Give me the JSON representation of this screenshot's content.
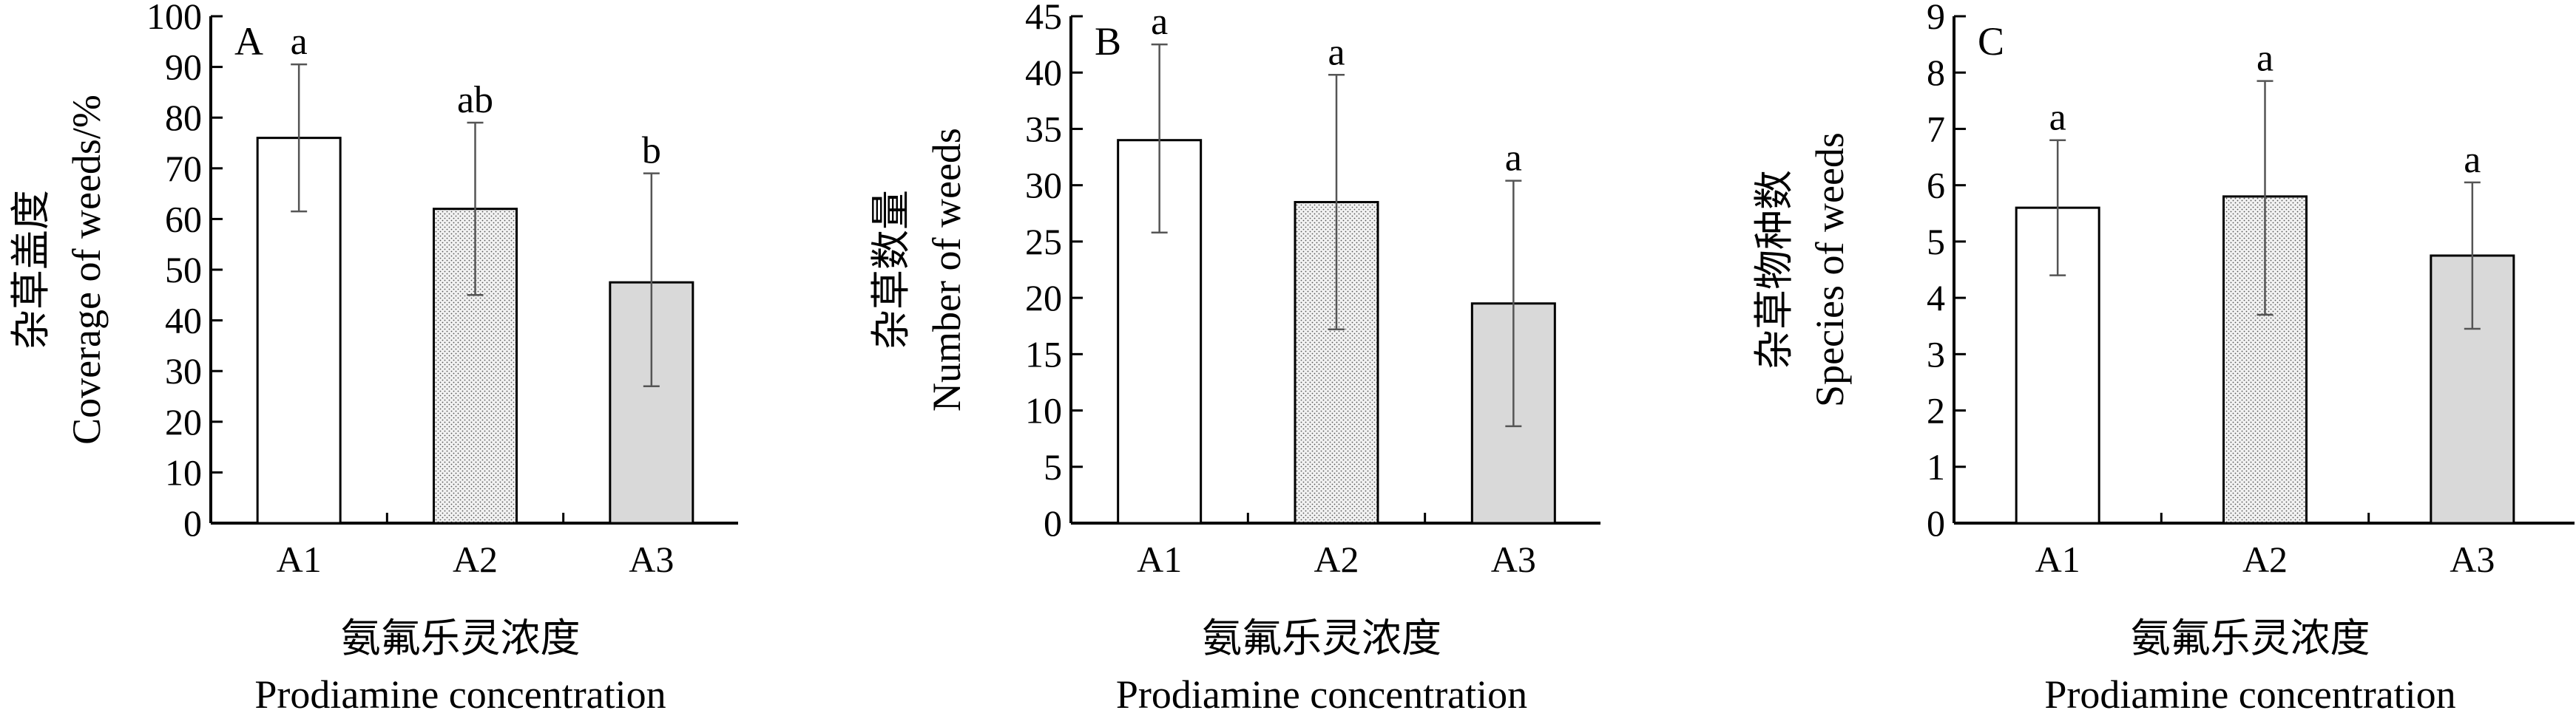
{
  "chart_data": [
    {
      "type": "bar",
      "panel_label": "A",
      "categories": [
        "A1",
        "A2",
        "A3"
      ],
      "values": [
        76,
        62,
        47.5
      ],
      "errors_upper": [
        90.5,
        79,
        69
      ],
      "errors_lower": [
        61.5,
        45,
        27
      ],
      "significance": [
        "a",
        "ab",
        "b"
      ],
      "ylabel_cn": "杂草盖度",
      "ylabel_en": "Coverage of weeds/%",
      "xlabel_cn": "氨氟乐灵浓度",
      "xlabel_en": "Prodiamine concentration",
      "ylim": [
        0,
        100
      ],
      "yticks": [
        "0",
        "10",
        "20",
        "30",
        "40",
        "50",
        "60",
        "70",
        "80",
        "90",
        "100"
      ]
    },
    {
      "type": "bar",
      "panel_label": "B",
      "categories": [
        "A1",
        "A2",
        "A3"
      ],
      "values": [
        34,
        28.5,
        19.5
      ],
      "errors_upper": [
        42.5,
        39.8,
        30.4
      ],
      "errors_lower": [
        25.8,
        17.2,
        8.6
      ],
      "significance": [
        "a",
        "a",
        "a"
      ],
      "ylabel_cn": "杂草数量",
      "ylabel_en": "Number of weeds",
      "xlabel_cn": "氨氟乐灵浓度",
      "xlabel_en": "Prodiamine concentration",
      "ylim": [
        0,
        45
      ],
      "yticks": [
        "0",
        "5",
        "10",
        "15",
        "20",
        "25",
        "30",
        "35",
        "40",
        "45"
      ]
    },
    {
      "type": "bar",
      "panel_label": "C",
      "categories": [
        "A1",
        "A2",
        "A3"
      ],
      "values": [
        5.6,
        5.8,
        4.75
      ],
      "errors_upper": [
        6.8,
        7.85,
        6.05
      ],
      "errors_lower": [
        4.4,
        3.7,
        3.45
      ],
      "significance": [
        "a",
        "a",
        "a"
      ],
      "ylabel_cn": "杂草物种数",
      "ylabel_en": "Species of weeds",
      "xlabel_cn": "氨氟乐灵浓度",
      "xlabel_en": "Prodiamine concentration",
      "ylim": [
        0,
        9
      ],
      "yticks": [
        "0",
        "1",
        "2",
        "3",
        "4",
        "5",
        "6",
        "7",
        "8",
        "9"
      ]
    }
  ],
  "colors": {
    "axis": "#000000",
    "bar_A1_fill": "#ffffff",
    "bar_A2_fill": "#f2f2f2",
    "bar_A2_dots": "#555555",
    "bar_A3_fill": "#d9d9d9",
    "error_bar": "#555555"
  }
}
